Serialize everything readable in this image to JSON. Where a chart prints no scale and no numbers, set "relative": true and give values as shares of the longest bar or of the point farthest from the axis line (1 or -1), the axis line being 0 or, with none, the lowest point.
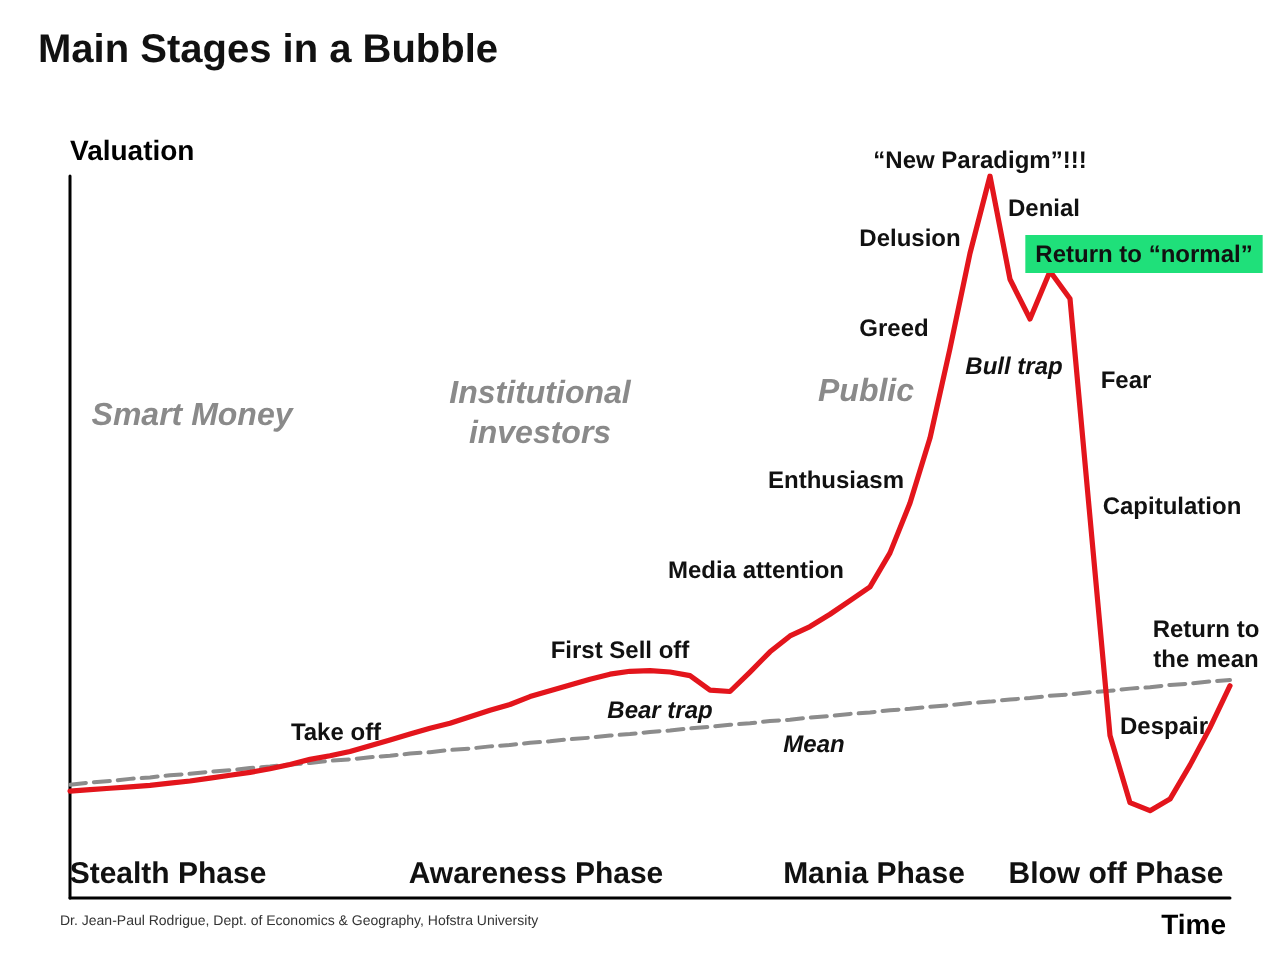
{
  "chart_data": {
    "type": "line",
    "title": "Main Stages in a Bubble",
    "xlabel": "Time",
    "ylabel": "Valuation",
    "relative": true,
    "categories": [
      null,
      null,
      null,
      null,
      null,
      null,
      null,
      null,
      null,
      null,
      null,
      null,
      null,
      null,
      null,
      null,
      null,
      null,
      null,
      null,
      null,
      null,
      null,
      null,
      null,
      null,
      null,
      null,
      null,
      null,
      null,
      null,
      null,
      null,
      null,
      null,
      null,
      null,
      null,
      null,
      null,
      null,
      null,
      null,
      null,
      null,
      null,
      null,
      null,
      null,
      null,
      null,
      null,
      null,
      null,
      null,
      null,
      null,
      null
    ],
    "series": [
      {
        "color": "#e3151c",
        "values": [
          0.148,
          0.15,
          0.152,
          0.154,
          0.156,
          0.159,
          0.162,
          0.166,
          0.17,
          0.174,
          0.179,
          0.185,
          0.192,
          0.197,
          0.203,
          0.211,
          0.219,
          0.227,
          0.235,
          0.242,
          0.251,
          0.26,
          0.268,
          0.279,
          0.287,
          0.295,
          0.303,
          0.31,
          0.314,
          0.315,
          0.313,
          0.308,
          0.288,
          0.286,
          0.313,
          0.341,
          0.363,
          0.376,
          0.393,
          0.412,
          0.431,
          0.478,
          0.547,
          0.637,
          0.761,
          0.893,
          1,
          0.857,
          0.802,
          0.868,
          0.83,
          0.527,
          0.225,
          0.132,
          0.121,
          0.137,
          0.184,
          0.236,
          0.294
        ]
      },
      {
        "color": "#8c8c8c",
        "line_style": "dashed",
        "values": [
          0.157,
          0.16,
          0.162,
          0.165,
          0.167,
          0.17,
          0.172,
          0.175,
          0.177,
          0.18,
          0.182,
          0.185,
          0.187,
          0.19,
          0.192,
          0.195,
          0.197,
          0.2,
          0.202,
          0.205,
          0.207,
          0.21,
          0.212,
          0.215,
          0.217,
          0.22,
          0.222,
          0.225,
          0.227,
          0.23,
          0.232,
          0.235,
          0.237,
          0.24,
          0.242,
          0.245,
          0.247,
          0.25,
          0.252,
          0.255,
          0.257,
          0.26,
          0.262,
          0.265,
          0.267,
          0.27,
          0.272,
          0.275,
          0.277,
          0.28,
          0.282,
          0.285,
          0.287,
          0.29,
          0.292,
          0.295,
          0.297,
          0.3,
          0.302
        ]
      }
    ],
    "annotations": [
      "Take off",
      "First Sell off",
      "Bear trap",
      "Media attention",
      "Mean",
      "Enthusiasm",
      "Greed",
      "Delusion",
      "“New Paradigm”!!!",
      "Denial",
      "Return to “normal”",
      "Bull trap",
      "Fear",
      "Capitulation",
      "Return to\nthe mean",
      "Despair",
      "Smart Money",
      "Institutional\ninvestors",
      "Public",
      "Stealth Phase",
      "Awareness Phase",
      "Mania Phase",
      "Blow off Phase",
      "Dr. Jean-Paul Rodrigue, Dept. of Economics & Geography, Hofstra University"
    ]
  }
}
